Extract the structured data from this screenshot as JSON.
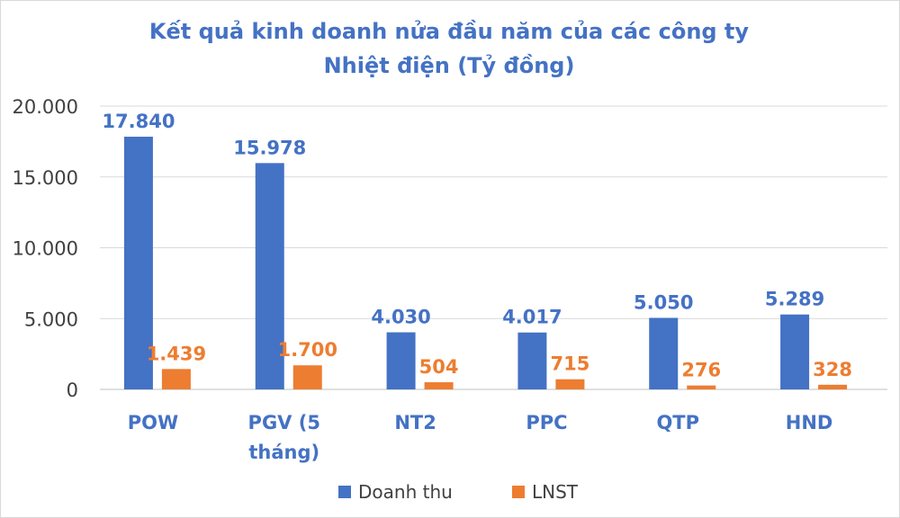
{
  "chart_data": {
    "type": "bar",
    "title": "Kết quả kinh doanh nửa đầu năm của các công ty Nhiệt điện (Tỷ đồng)",
    "title_lines": [
      "Kết quả kinh doanh nửa đầu năm của các công ty",
      "Nhiệt điện (Tỷ đồng)"
    ],
    "categories": [
      "POW",
      "PGV (5 tháng)",
      "NT2",
      "PPC",
      "QTP",
      "HND"
    ],
    "category_lines": [
      [
        "POW"
      ],
      [
        "PGV (5",
        "tháng)"
      ],
      [
        "NT2"
      ],
      [
        "PPC"
      ],
      [
        "QTP"
      ],
      [
        "HND"
      ]
    ],
    "series": [
      {
        "name": "Doanh thu",
        "color": "#4472c4",
        "values": [
          17840,
          15978,
          4030,
          4017,
          5050,
          5289
        ],
        "labels": [
          "17.840",
          "15.978",
          "4.030",
          "4.017",
          "5.050",
          "5.289"
        ]
      },
      {
        "name": "LNST",
        "color": "#ed7d31",
        "values": [
          1439,
          1700,
          504,
          715,
          276,
          328
        ],
        "labels": [
          "1.439",
          "1.700",
          "504",
          "715",
          "276",
          "328"
        ]
      }
    ],
    "ylim": [
      0,
      20000
    ],
    "yticks": [
      0,
      5000,
      10000,
      15000,
      20000
    ],
    "ytick_labels": [
      "0",
      "5.000",
      "10.000",
      "15.000",
      "20.000"
    ],
    "xlabel": "",
    "ylabel": "",
    "grid": true,
    "legend_position": "bottom"
  }
}
